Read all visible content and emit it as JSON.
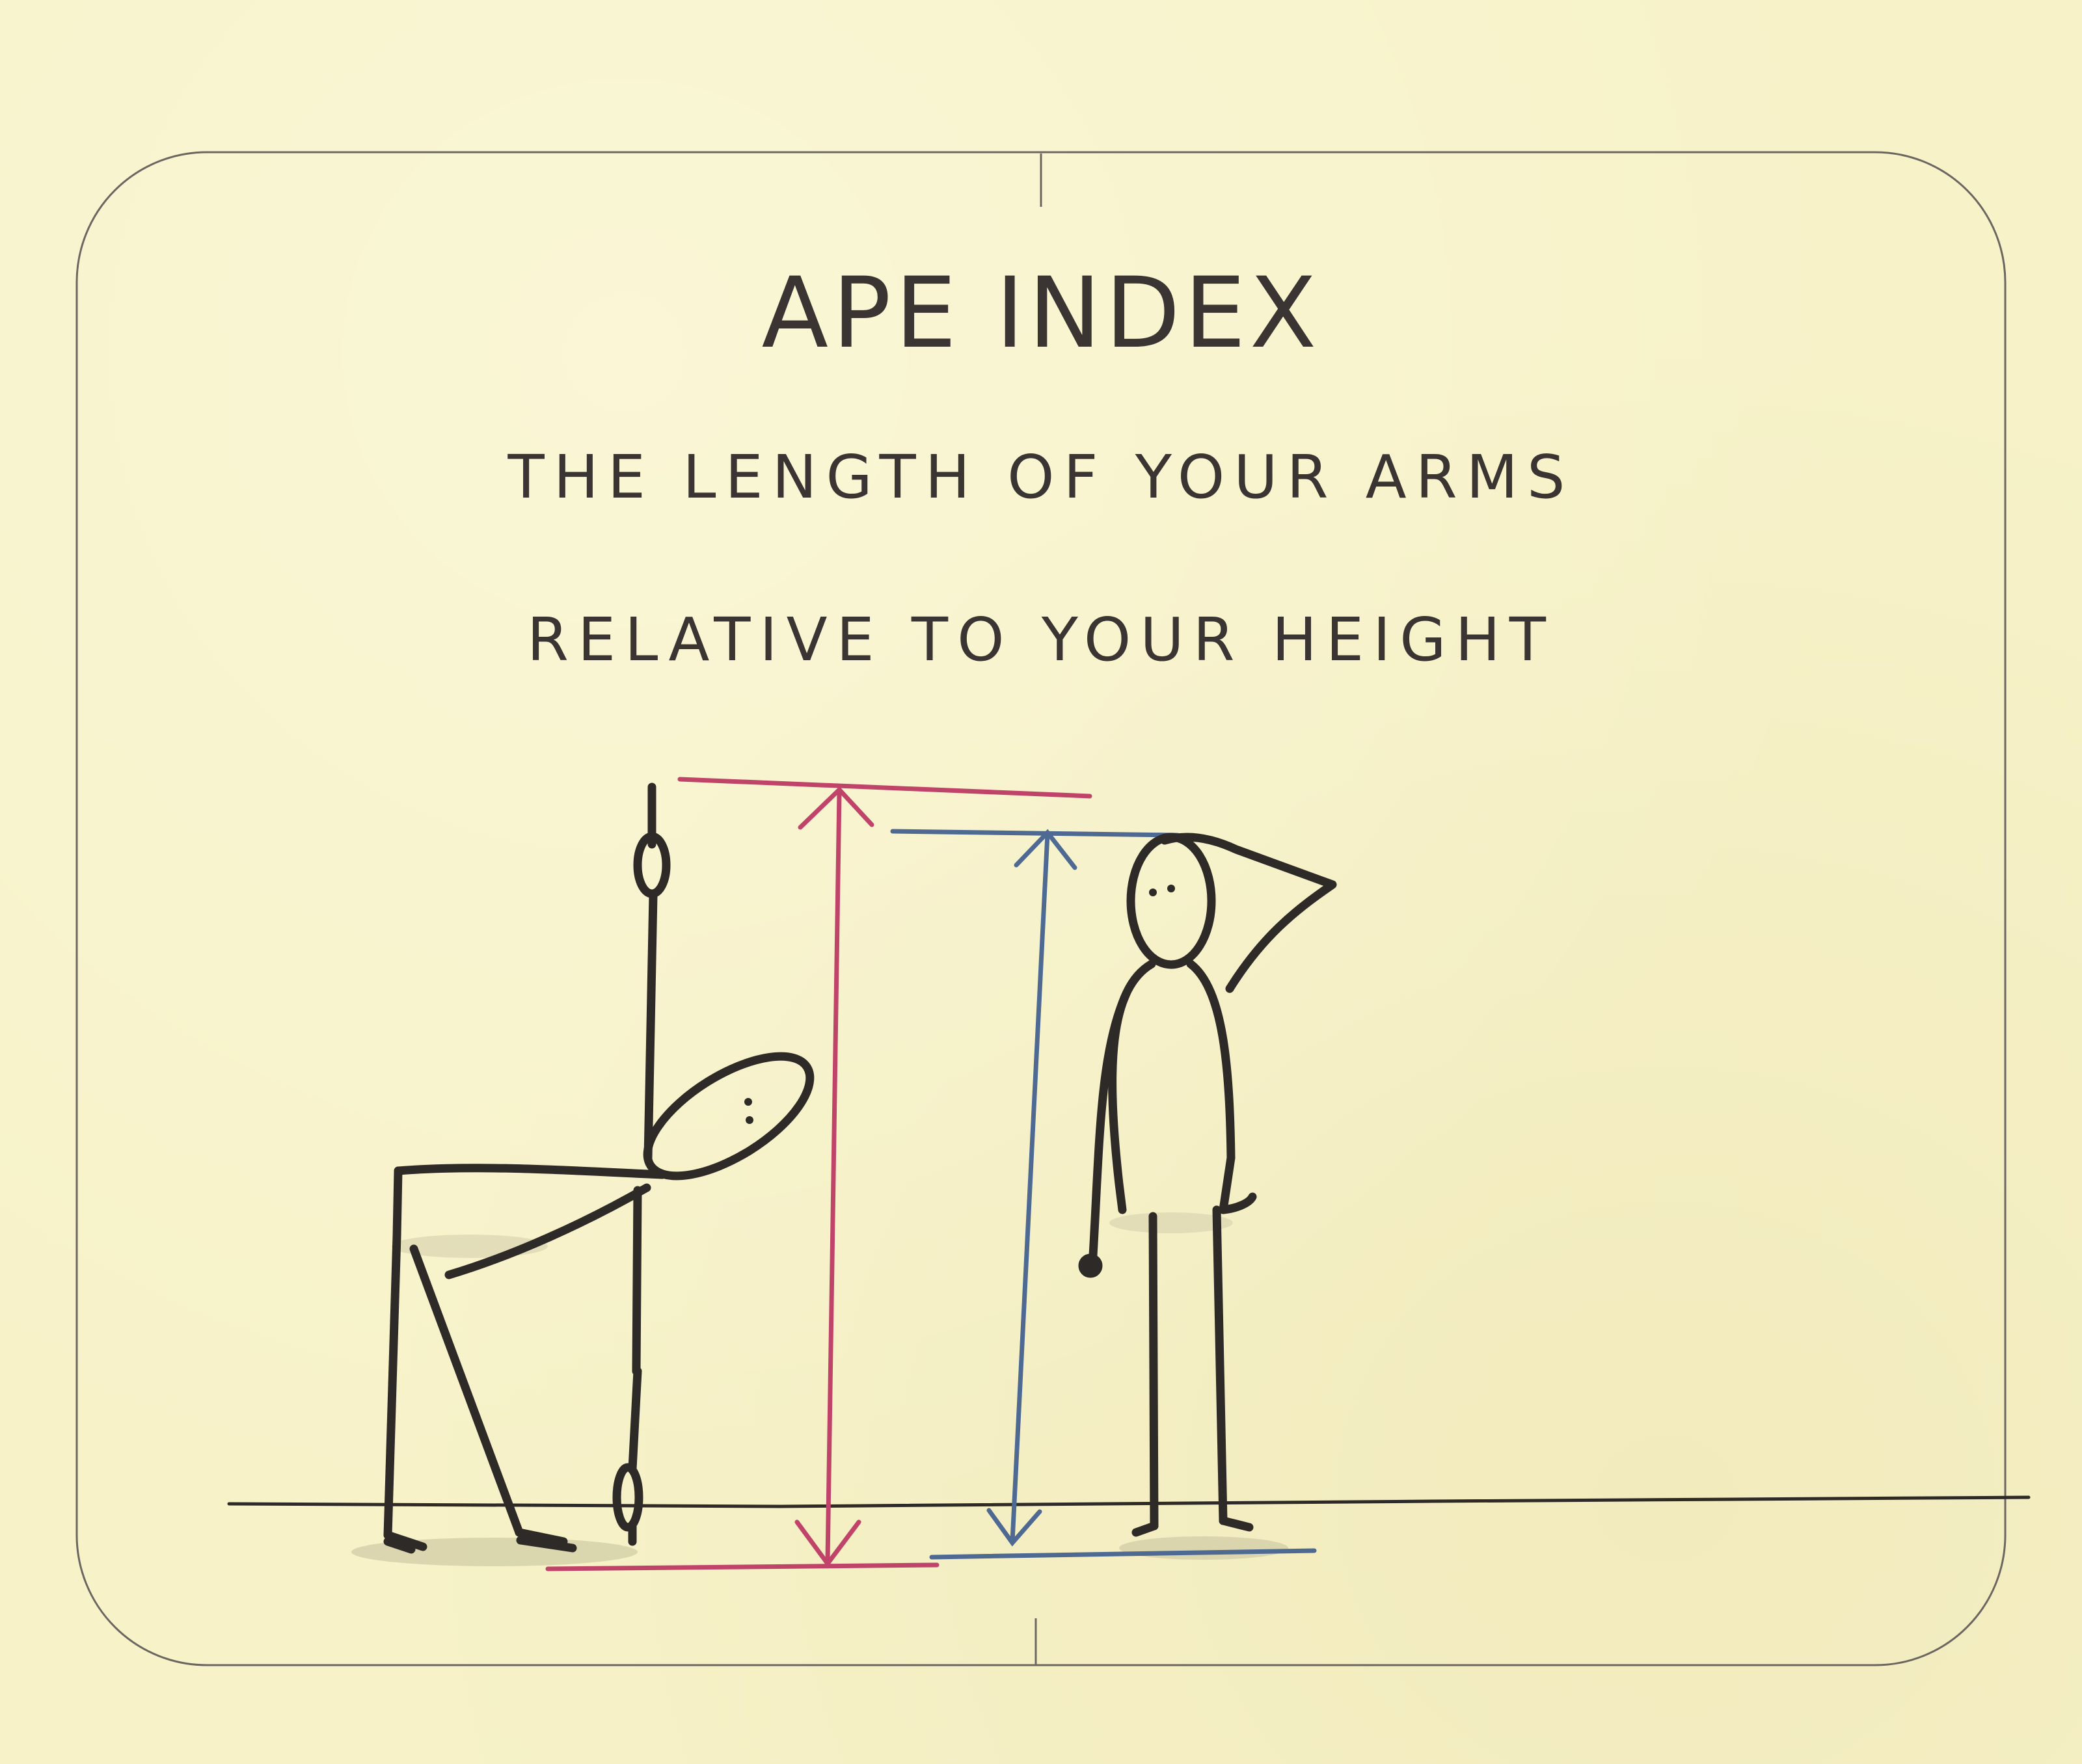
{
  "title": "APE INDEX",
  "subtitle_line1": "THE LENGTH OF YOUR ARMS",
  "subtitle_line2": "RELATIVE TO YOUR HEIGHT",
  "colors": {
    "paper": "#f7f2c8",
    "ink": "#3a3432",
    "arm_span_line": "#c0446a",
    "height_line": "#4e6a93",
    "frame": "#6b6660"
  },
  "icons": {
    "figure_reaching": "stick-figure-reaching-up",
    "figure_standing": "stick-figure-standing-scratching-head",
    "arm_span_arrow": "double-arrow-pink",
    "height_arrow": "double-arrow-blue"
  }
}
